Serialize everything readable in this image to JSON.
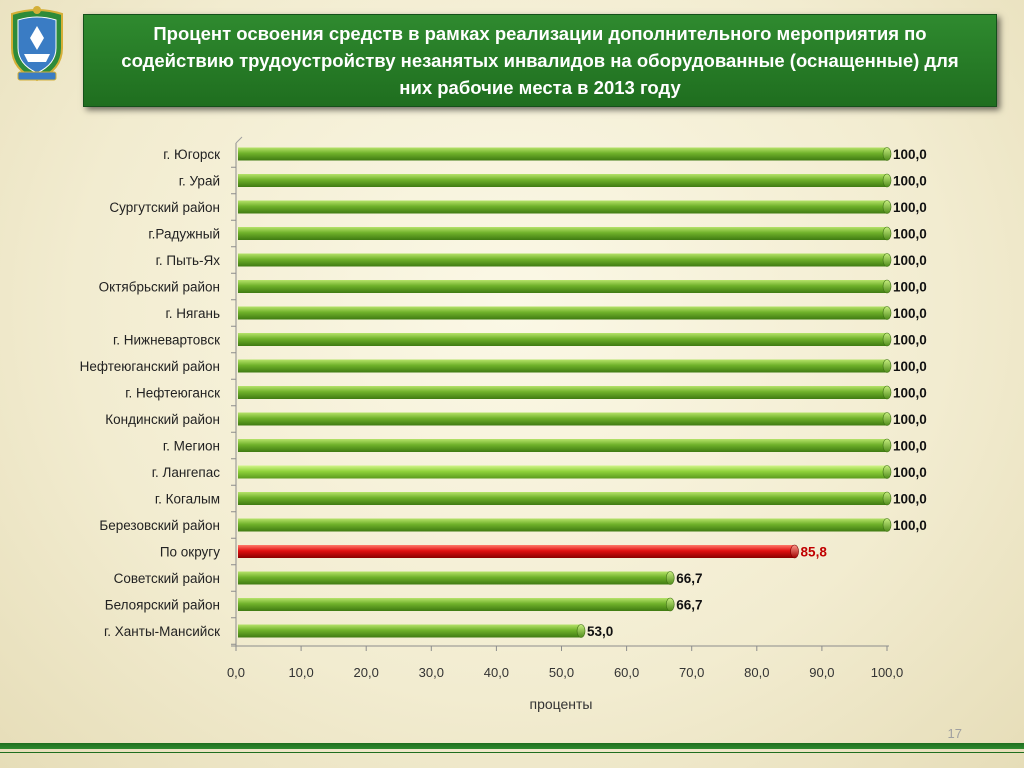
{
  "slide": {
    "title": "Процент освоения средств в рамках реализации дополнительного мероприятия по содействию трудоустройству  незанятых инвалидов  на оборудованные (оснащенные) для них рабочие места в 2013 году",
    "slide_number": "17",
    "emblem_icon": "coat-of-arms-emblem"
  },
  "colors": {
    "bar_green": "#6fb12a",
    "bar_light_green": "#8fd23a",
    "bar_red": "#e01010",
    "title_bg": "#237a23",
    "red_label": "#c00000"
  },
  "chart_data": {
    "type": "bar",
    "orientation": "horizontal",
    "title": "",
    "xlabel": "проценты",
    "ylabel": "",
    "xlim": [
      0,
      100
    ],
    "x_ticks": [
      "0,0",
      "10,0",
      "20,0",
      "30,0",
      "40,0",
      "50,0",
      "60,0",
      "70,0",
      "80,0",
      "90,0",
      "100,0"
    ],
    "grid": false,
    "legend": "none",
    "categories": [
      "г. Югорск",
      "г. Урай",
      "Сургутский район",
      "г.Радужный",
      "г. Пыть-Ях",
      "Октябрьский район",
      "г. Нягань",
      "г. Нижневартовск",
      "Нефтеюганский район",
      "г. Нефтеюганск",
      "Кондинский район",
      "г. Мегион",
      "г. Лангепас",
      "г. Когалым",
      "Березовский район",
      "По округу",
      "Советский район",
      "Белоярский  район",
      "г. Ханты-Мансийск"
    ],
    "values": [
      100.0,
      100.0,
      100.0,
      100.0,
      100.0,
      100.0,
      100.0,
      100.0,
      100.0,
      100.0,
      100.0,
      100.0,
      100.0,
      100.0,
      100.0,
      85.8,
      66.7,
      66.7,
      53.0
    ],
    "value_labels": [
      "100,0",
      "100,0",
      "100,0",
      "100,0",
      "100,0",
      "100,0",
      "100,0",
      "100,0",
      "100,0",
      "100,0",
      "100,0",
      "100,0",
      "100,0",
      "100,0",
      "100,0",
      "85,8",
      "66,7",
      "66,7",
      "53,0"
    ],
    "highlight": [
      "default",
      "default",
      "default",
      "default",
      "default",
      "default",
      "default",
      "default",
      "default",
      "default",
      "default",
      "default",
      "light",
      "default",
      "default",
      "red",
      "default",
      "default",
      "default"
    ]
  }
}
